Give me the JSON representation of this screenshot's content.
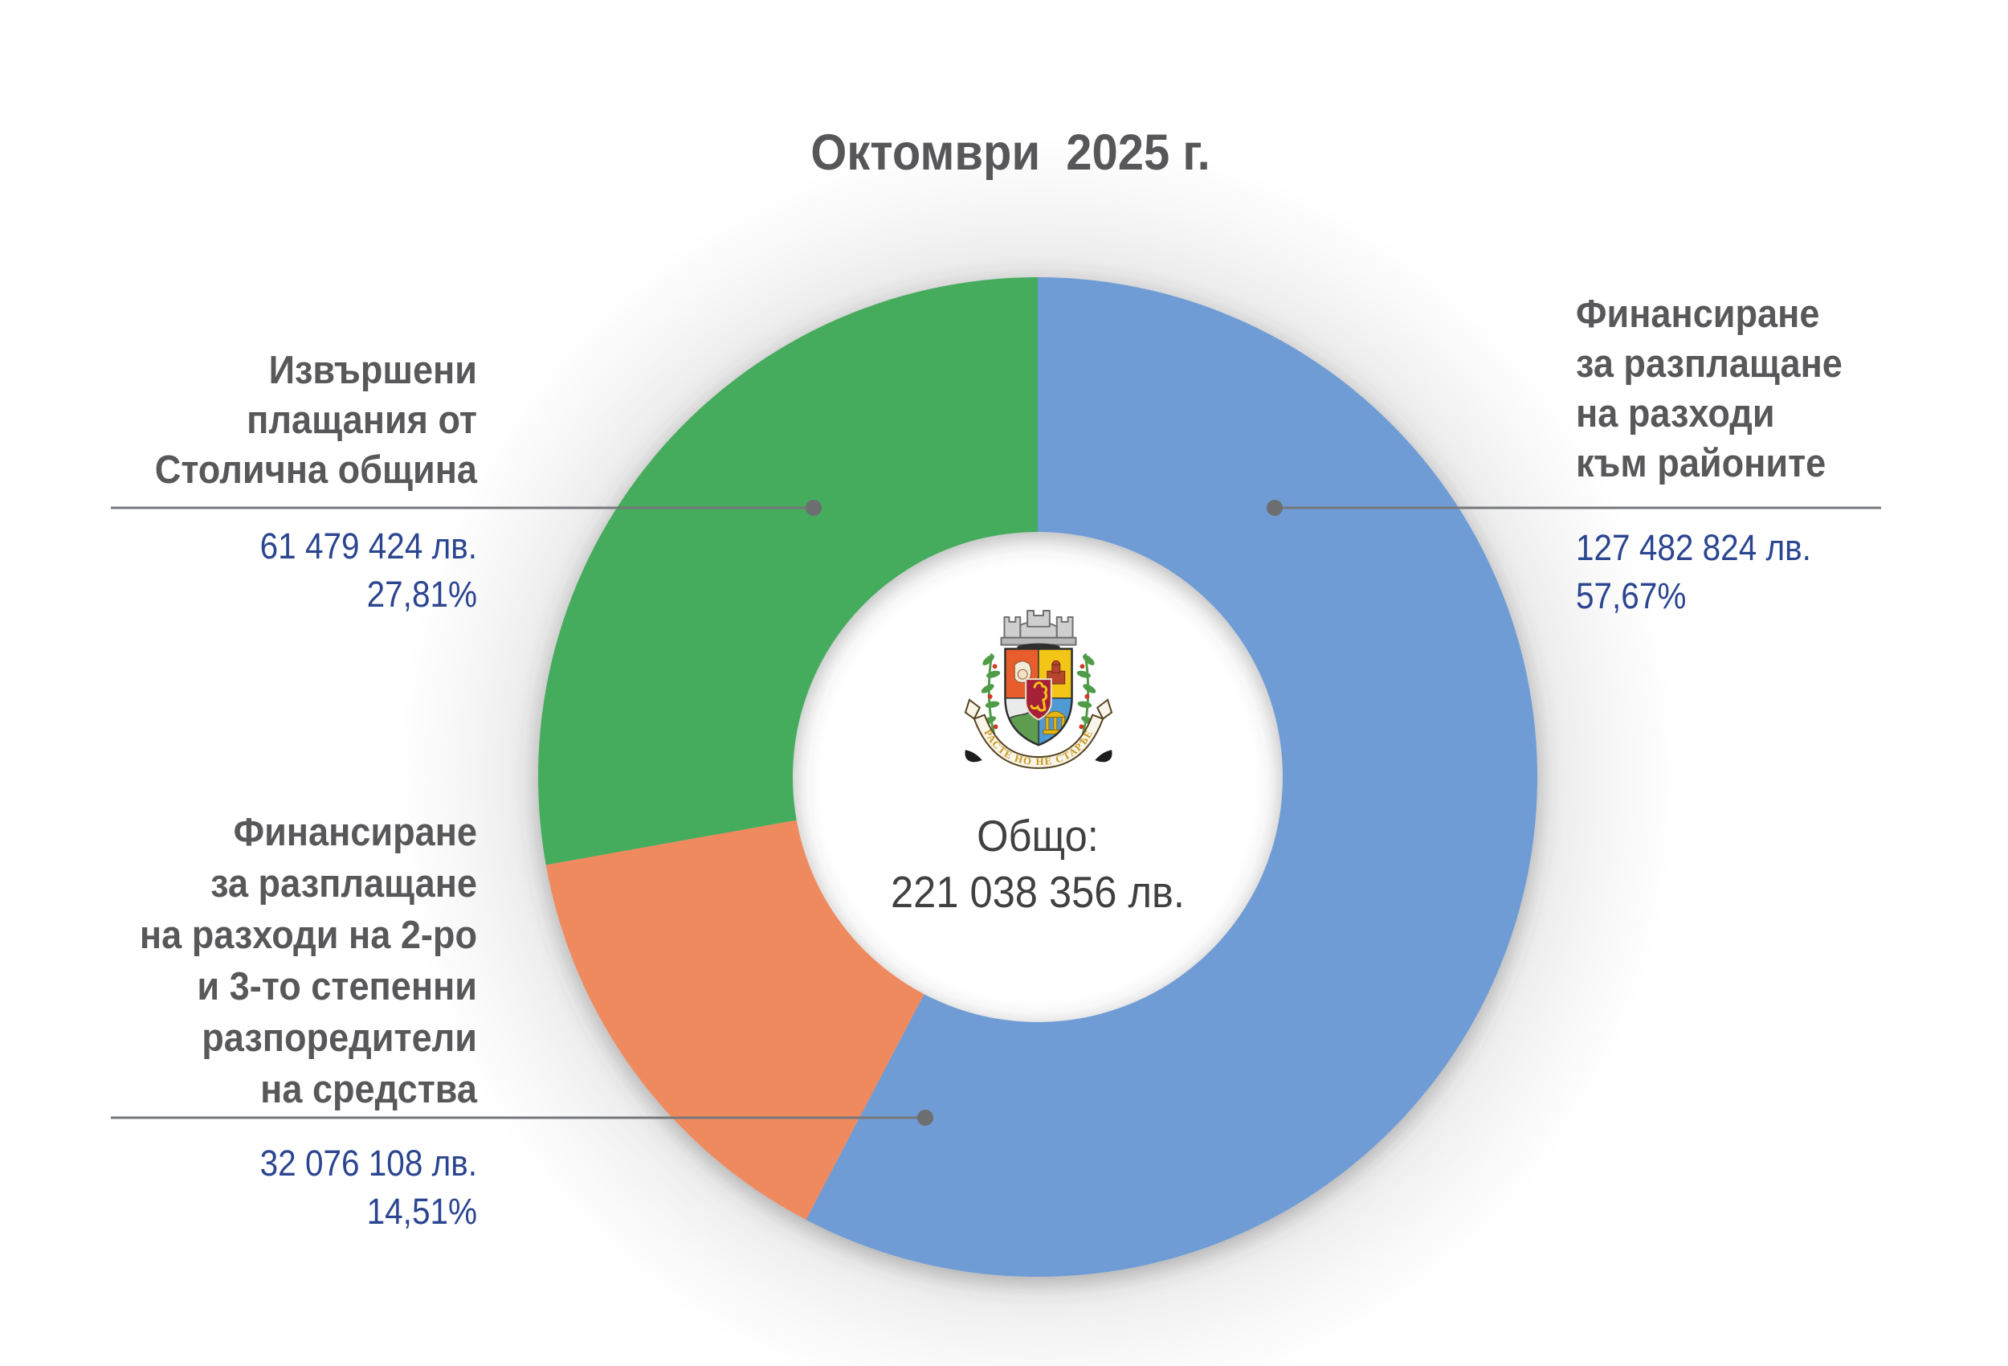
{
  "title": "Октомври  2025 г.",
  "center": {
    "label": "Общо:",
    "value": "221 038 356 лв."
  },
  "coat_of_arms": {
    "motto": "РАСТЕ  НО НЕ  СТАРѢЕ"
  },
  "callouts": {
    "green": {
      "label": "Извършени\nплащания от\nСтолична община",
      "amount": "61 479 424 лв.",
      "percent": "27,81%"
    },
    "blue": {
      "label": "Финансиране\nза разплащане\nна разходи\nкъм районите",
      "amount": "127 482 824 лв.",
      "percent": "57,67%"
    },
    "orange": {
      "label": "Финансиране\nза разплащане\nна разходи на 2-ро\nи 3-то степенни\nразпоредители\nна средства",
      "amount": "32 076 108 лв.",
      "percent": "14,51%"
    }
  },
  "chart_data": {
    "type": "pie",
    "subtype": "donut",
    "title": "Октомври  2025 г.",
    "center_label": "Общо:",
    "center_value": "221 038 356 лв.",
    "total": 221038356,
    "unit": "лв.",
    "direction": "clockwise",
    "start_angle_deg": 0,
    "legend_position": "callout-labels",
    "slices": [
      {
        "id": "districts",
        "label": "Финансиране за разплащане на разходи към районите",
        "value": 127482824,
        "amount_label": "127 482 824 лв.",
        "percent": 57.67,
        "percent_label": "57,67%",
        "color": "#6f9cd6"
      },
      {
        "id": "secondary-spenders",
        "label": "Финансиране за разплащане на разходи на 2-ро и 3-то степенни разпоредители на средства",
        "value": 32076108,
        "amount_label": "32 076 108 лв.",
        "percent": 14.51,
        "percent_label": "14,51%",
        "color": "#ef8a5e"
      },
      {
        "id": "sofia-payments",
        "label": "Извършени плащания от Столична община",
        "value": 61479424,
        "amount_label": "61 479 424 лв.",
        "percent": 27.81,
        "percent_label": "27,81%",
        "color": "#45ac5d"
      }
    ]
  }
}
